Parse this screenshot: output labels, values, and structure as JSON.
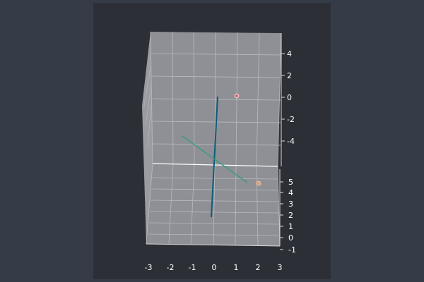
{
  "colors": {
    "background": "#363c47",
    "figure": "#2c3036",
    "pane": "#8e9095",
    "grid": "#b8babf",
    "text": "#ffffff"
  },
  "chart_data": {
    "type": "line",
    "projection": "3d",
    "title": "",
    "xlabel": "",
    "ylabel": "",
    "zlabel": "",
    "grid": true,
    "xlim": [
      -3,
      3
    ],
    "ylim": [
      -1,
      5
    ],
    "zlim": [
      -6,
      6
    ],
    "x_ticks": [
      "-3",
      "-2",
      "-1",
      "0",
      "1",
      "2",
      "3"
    ],
    "y_ticks": [
      "-1",
      "0",
      "1",
      "2",
      "3",
      "4",
      "5"
    ],
    "z_ticks": [
      "-4",
      "-2",
      "0",
      "2",
      "4"
    ],
    "series": [
      {
        "color": "#0e5d7a",
        "type": "line",
        "points": [
          [
            0,
            -1,
            -5
          ],
          [
            0,
            5,
            0
          ]
        ]
      },
      {
        "color": "#3e9a80",
        "type": "line",
        "points": [
          [
            -1.5,
            3,
            -2.5
          ],
          [
            1.5,
            3,
            -2.5
          ]
        ]
      },
      {
        "color": "#e05570",
        "type": "scatter",
        "points": [
          [
            1,
            4,
            0
          ]
        ]
      },
      {
        "color": "#e0a070",
        "type": "scatter",
        "points": [
          [
            2,
            5,
            -6
          ]
        ]
      }
    ]
  }
}
